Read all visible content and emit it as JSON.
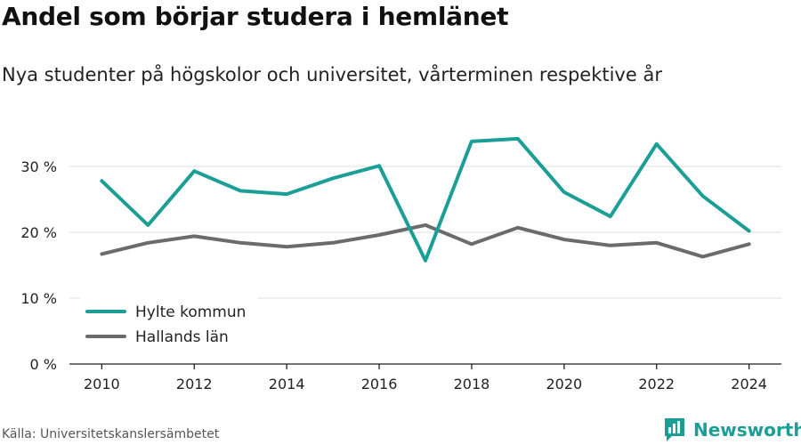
{
  "header": {
    "title": "Andel som börjar studera i hemlänet",
    "subtitle": "Nya studenter på högskolor och universitet, vårterminen respektive år"
  },
  "footer": {
    "source": "Källa: Universitetskanslersämbetet",
    "brand": "Newsworthy",
    "brand_icon": "newsworthy-logo-icon",
    "brand_color": "#1b9e95"
  },
  "chart_data": {
    "type": "line",
    "x": [
      2010,
      2011,
      2012,
      2013,
      2014,
      2015,
      2016,
      2017,
      2018,
      2019,
      2020,
      2021,
      2022,
      2023,
      2024
    ],
    "x_ticks": [
      2010,
      2012,
      2014,
      2016,
      2018,
      2020,
      2022,
      2024
    ],
    "y_ticks": [
      0,
      10,
      20,
      30
    ],
    "y_tick_labels": [
      "0 %",
      "10 %",
      "20 %",
      "30 %"
    ],
    "ylim": [
      0,
      35
    ],
    "grid": "horizontal",
    "legend_position": "bottom-left",
    "series": [
      {
        "name": "Hylte kommun",
        "color": "#1b9e95",
        "values": [
          27.8,
          21.1,
          29.3,
          26.3,
          25.8,
          28.2,
          30.1,
          15.7,
          33.8,
          34.2,
          26.1,
          22.4,
          33.4,
          25.5,
          20.2
        ]
      },
      {
        "name": "Hallands län",
        "color": "#6b6b6f",
        "values": [
          16.7,
          18.4,
          19.4,
          18.4,
          17.8,
          18.4,
          19.6,
          21.1,
          18.2,
          20.7,
          18.9,
          18.0,
          18.4,
          16.3,
          18.2
        ]
      }
    ]
  }
}
